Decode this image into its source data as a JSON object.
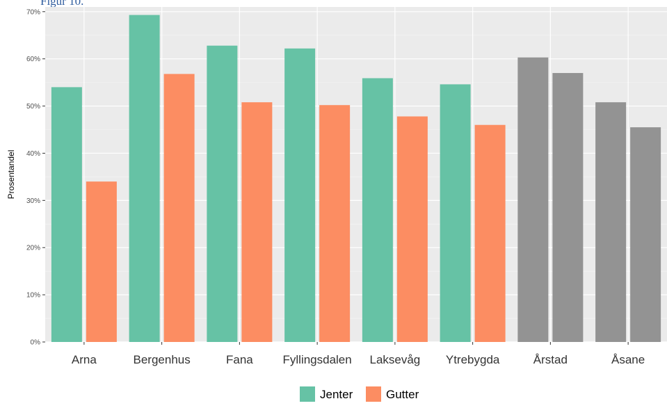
{
  "figure_caption": "Figur 10.",
  "chart_data": {
    "type": "bar",
    "title": "",
    "xlabel": "",
    "ylabel": "Prosentandel",
    "ylim": [
      0,
      71
    ],
    "y_ticks": [
      0,
      10,
      20,
      30,
      40,
      50,
      60,
      70
    ],
    "y_tick_labels": [
      "0%",
      "10%",
      "20%",
      "30%",
      "40%",
      "50%",
      "60%",
      "70%"
    ],
    "grid": true,
    "legend_position": "bottom",
    "categories": [
      "Arna",
      "Bergenhus",
      "Fana",
      "Fyllingsdalen",
      "Laksevåg",
      "Ytrebygda",
      "Årstad",
      "Åsane"
    ],
    "series": [
      {
        "name": "Jenter",
        "color": "#66c2a5",
        "values": [
          54.0,
          69.3,
          62.8,
          62.2,
          55.9,
          54.6,
          60.3,
          50.8
        ]
      },
      {
        "name": "Gutter",
        "color": "#fc8d62",
        "values": [
          34.0,
          56.8,
          50.8,
          50.2,
          47.8,
          46.0,
          57.0,
          45.5
        ]
      }
    ],
    "gray_categories": [
      "Årstad",
      "Åsane"
    ],
    "gray_color": "#939393",
    "panel_background": "#ebebeb"
  }
}
